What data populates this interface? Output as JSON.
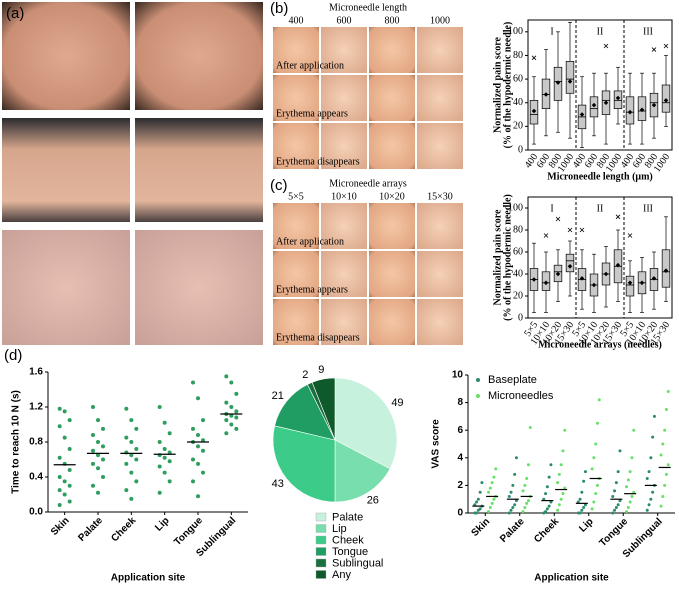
{
  "panel_a": {
    "label": "(a)"
  },
  "panel_b": {
    "label": "(b)",
    "photo_title": "Microneedle length",
    "columns": [
      "400",
      "600",
      "800",
      "1000"
    ],
    "rows": [
      "After application",
      "Erythema appears",
      "Erythema disappears"
    ]
  },
  "panel_c": {
    "label": "(c)",
    "photo_title": "Microneedle arrays",
    "columns": [
      "5×5",
      "10×10",
      "10×20",
      "15×30"
    ],
    "rows": [
      "After application",
      "Erythema appears",
      "Erythema disappears"
    ]
  },
  "panel_d": {
    "label": "(d)"
  },
  "chart_data": [
    {
      "type": "box",
      "ylabel_lines": [
        "Normalized pain score",
        "(% of the hypodermic needle)"
      ],
      "xlabel": "Microneedle length (μm)",
      "groups": [
        "I",
        "II",
        "III"
      ],
      "categories": [
        "400",
        "600",
        "800",
        "1000",
        "400",
        "600",
        "800",
        "1000",
        "400",
        "600",
        "800",
        "1000"
      ],
      "boxes": [
        {
          "whisker_low": 5,
          "q1": 22,
          "median": 30,
          "q3": 42,
          "whisker_high": 62,
          "mean": 33,
          "outliers": [
            78
          ]
        },
        {
          "whisker_low": 12,
          "q1": 35,
          "median": 47,
          "q3": 60,
          "whisker_high": 85,
          "mean": 47,
          "outliers": []
        },
        {
          "whisker_low": 15,
          "q1": 42,
          "median": 58,
          "q3": 70,
          "whisker_high": 100,
          "mean": 57,
          "outliers": []
        },
        {
          "whisker_low": 10,
          "q1": 48,
          "median": 60,
          "q3": 75,
          "whisker_high": 108,
          "mean": 58,
          "outliers": []
        },
        {
          "whisker_low": 2,
          "q1": 18,
          "median": 28,
          "q3": 38,
          "whisker_high": 62,
          "mean": 30,
          "outliers": []
        },
        {
          "whisker_low": 12,
          "q1": 28,
          "median": 35,
          "q3": 45,
          "whisker_high": 65,
          "mean": 38,
          "outliers": []
        },
        {
          "whisker_low": 5,
          "q1": 30,
          "median": 42,
          "q3": 50,
          "whisker_high": 65,
          "mean": 40,
          "outliers": [
            88
          ]
        },
        {
          "whisker_low": 22,
          "q1": 35,
          "median": 42,
          "q3": 50,
          "whisker_high": 70,
          "mean": 44,
          "outliers": []
        },
        {
          "whisker_low": 5,
          "q1": 22,
          "median": 32,
          "q3": 45,
          "whisker_high": 65,
          "mean": 32,
          "outliers": []
        },
        {
          "whisker_low": 5,
          "q1": 25,
          "median": 33,
          "q3": 45,
          "whisker_high": 65,
          "mean": 34,
          "outliers": []
        },
        {
          "whisker_low": 10,
          "q1": 28,
          "median": 40,
          "q3": 48,
          "whisker_high": 65,
          "mean": 38,
          "outliers": [
            85
          ]
        },
        {
          "whisker_low": 20,
          "q1": 32,
          "median": 40,
          "q3": 55,
          "whisker_high": 80,
          "mean": 42,
          "outliers": [
            88
          ]
        }
      ],
      "color": "#c8c8c8",
      "ylim": [
        0,
        110
      ],
      "yticks": [
        0,
        20,
        40,
        60,
        80,
        100
      ]
    },
    {
      "type": "box",
      "ylabel_lines": [
        "Normalized pain score",
        "(% of the hypodermic needle)"
      ],
      "xlabel": "Microneedle arrays (needles)",
      "groups": [
        "I",
        "II",
        "III"
      ],
      "categories": [
        "5×5",
        "10×10",
        "10×20",
        "15×30",
        "5×5",
        "10×10",
        "10×20",
        "15×30",
        "5×5",
        "10×10",
        "10×20",
        "15×30"
      ],
      "boxes": [
        {
          "whisker_low": 5,
          "q1": 25,
          "median": 35,
          "q3": 45,
          "whisker_high": 68,
          "mean": 35,
          "outliers": []
        },
        {
          "whisker_low": 5,
          "q1": 25,
          "median": 32,
          "q3": 42,
          "whisker_high": 60,
          "mean": 32,
          "outliers": [
            75
          ]
        },
        {
          "whisker_low": 15,
          "q1": 33,
          "median": 42,
          "q3": 48,
          "whisker_high": 62,
          "mean": 40,
          "outliers": [
            90
          ]
        },
        {
          "whisker_low": 20,
          "q1": 42,
          "median": 52,
          "q3": 58,
          "whisker_high": 70,
          "mean": 47,
          "outliers": [
            80
          ]
        },
        {
          "whisker_low": 8,
          "q1": 25,
          "median": 35,
          "q3": 45,
          "whisker_high": 62,
          "mean": 36,
          "outliers": [
            80
          ]
        },
        {
          "whisker_low": 5,
          "q1": 20,
          "median": 30,
          "q3": 40,
          "whisker_high": 58,
          "mean": 30,
          "outliers": []
        },
        {
          "whisker_low": 10,
          "q1": 30,
          "median": 40,
          "q3": 50,
          "whisker_high": 65,
          "mean": 40,
          "outliers": []
        },
        {
          "whisker_low": 15,
          "q1": 32,
          "median": 47,
          "q3": 62,
          "whisker_high": 80,
          "mean": 48,
          "outliers": [
            92
          ]
        },
        {
          "whisker_low": 5,
          "q1": 20,
          "median": 30,
          "q3": 38,
          "whisker_high": 52,
          "mean": 32,
          "outliers": [
            75
          ]
        },
        {
          "whisker_low": 5,
          "q1": 22,
          "median": 32,
          "q3": 42,
          "whisker_high": 55,
          "mean": 32,
          "outliers": []
        },
        {
          "whisker_low": 8,
          "q1": 25,
          "median": 35,
          "q3": 45,
          "whisker_high": 60,
          "mean": 36,
          "outliers": []
        },
        {
          "whisker_low": 15,
          "q1": 28,
          "median": 42,
          "q3": 62,
          "whisker_high": 92,
          "mean": 43,
          "outliers": []
        }
      ],
      "color": "#c8c8c8",
      "ylim": [
        0,
        110
      ],
      "yticks": [
        0,
        20,
        40,
        60,
        80,
        100
      ]
    },
    {
      "type": "dot",
      "ylabel": "Time to reach 10 N (s)",
      "xlabel": "Application site",
      "categories": [
        "Skin",
        "Palate",
        "Cheek",
        "Lip",
        "Tongue",
        "Sublingual"
      ],
      "values": [
        [
          1.18,
          1.15,
          1.05,
          0.98,
          0.85,
          0.72,
          0.62,
          0.55,
          0.48,
          0.4,
          0.35,
          0.3,
          0.25,
          0.2,
          0.12,
          0.08
        ],
        [
          1.2,
          1.05,
          0.95,
          0.88,
          0.8,
          0.75,
          0.7,
          0.65,
          0.6,
          0.55,
          0.5,
          0.4,
          0.3,
          0.22
        ],
        [
          1.18,
          1.05,
          0.95,
          0.85,
          0.8,
          0.72,
          0.68,
          0.65,
          0.6,
          0.55,
          0.45,
          0.35,
          0.25,
          0.15
        ],
        [
          1.2,
          1.02,
          0.9,
          0.8,
          0.72,
          0.68,
          0.65,
          0.62,
          0.58,
          0.52,
          0.45,
          0.35,
          0.22
        ],
        [
          1.48,
          1.3,
          1.05,
          0.95,
          0.88,
          0.82,
          0.8,
          0.75,
          0.7,
          0.6,
          0.55,
          0.45,
          0.35,
          0.18
        ],
        [
          1.55,
          1.48,
          1.35,
          1.25,
          1.2,
          1.15,
          1.12,
          1.1,
          1.08,
          1.05,
          1.0,
          0.95,
          0.9
        ]
      ],
      "medians": [
        0.54,
        0.67,
        0.67,
        0.66,
        0.8,
        1.12
      ],
      "color": "#2e9e5e",
      "ylim": [
        0,
        1.6
      ],
      "yticks": [
        {
          "value": 0,
          "label": "0.0"
        },
        0.4,
        0.8,
        1.2,
        1.6
      ]
    },
    {
      "type": "pie",
      "categories": [
        "Palate",
        "Lip",
        "Cheek",
        "Tongue",
        "Sublingual",
        "Any"
      ],
      "values": [
        49,
        26,
        43,
        21,
        2,
        9
      ],
      "colors": [
        "#c6f1dc",
        "#79deae",
        "#3ccb88",
        "#1f9d62",
        "#1b6e3e",
        "#0f5a2a"
      ]
    },
    {
      "type": "dot-grouped",
      "ylabel": "VAS score",
      "xlabel": "Application site",
      "categories": [
        "Skin",
        "Palate",
        "Cheek",
        "Lip",
        "Tongue",
        "Sublingual"
      ],
      "series": [
        {
          "name": "Baseplate",
          "color": "#2a8c6a",
          "values": [
            [
              0,
              0,
              0.2,
              0.3,
              0.5,
              0.6,
              0.8,
              1.0,
              1.5,
              2.2
            ],
            [
              0,
              0.2,
              0.4,
              0.6,
              0.9,
              1.2,
              1.5,
              2.0,
              2.8,
              4.0
            ],
            [
              0,
              0.1,
              0.3,
              0.5,
              0.8,
              1.0,
              1.4,
              1.9,
              2.6,
              3.5
            ],
            [
              0,
              0,
              0.2,
              0.4,
              0.6,
              0.8,
              1.0,
              1.5,
              2.3,
              3.0
            ],
            [
              0,
              0.2,
              0.4,
              0.6,
              0.9,
              1.2,
              1.6,
              2.2,
              3.0,
              4.5
            ],
            [
              0.2,
              0.6,
              1.0,
              1.5,
              2.0,
              2.5,
              3.0,
              4.0,
              5.5,
              7.0
            ]
          ],
          "means": [
            0.5,
            1.0,
            0.9,
            0.7,
            1.0,
            2.0
          ]
        },
        {
          "name": "Microneedles",
          "color": "#66e066",
          "values": [
            [
              0.1,
              0.4,
              0.7,
              1.0,
              1.2,
              1.5,
              1.8,
              2.2,
              2.6,
              3.2
            ],
            [
              0.1,
              0.4,
              0.7,
              0.9,
              1.2,
              1.6,
              2.0,
              2.5,
              3.5,
              6.2
            ],
            [
              0.2,
              0.6,
              1.0,
              1.4,
              1.8,
              2.2,
              2.8,
              3.5,
              4.5,
              6.0
            ],
            [
              0.3,
              0.8,
              1.4,
              2.0,
              2.5,
              3.2,
              4.0,
              5.0,
              6.5,
              8.2
            ],
            [
              0.1,
              0.4,
              0.8,
              1.2,
              1.5,
              1.9,
              2.4,
              3.0,
              4.0,
              6.0
            ],
            [
              0.5,
              1.2,
              2.0,
              2.8,
              3.5,
              4.2,
              5.0,
              6.0,
              7.5,
              8.8
            ]
          ],
          "means": [
            1.2,
            1.2,
            1.7,
            2.5,
            1.4,
            3.3
          ]
        }
      ],
      "ylim": [
        0,
        10
      ],
      "yticks": [
        0,
        2,
        4,
        6,
        8,
        10
      ],
      "legend": "top-left"
    }
  ]
}
